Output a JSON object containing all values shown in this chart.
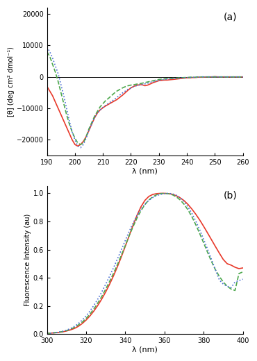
{
  "panel_a": {
    "xlim": [
      190,
      260
    ],
    "ylim": [
      -25000,
      22000
    ],
    "xlabel": "λ (nm)",
    "ylabel": "[θ] (deg cm² dmol⁻¹)",
    "xticks": [
      190,
      200,
      210,
      220,
      230,
      240,
      250,
      260
    ],
    "yticks": [
      -20000,
      -10000,
      0,
      10000,
      20000
    ],
    "label": "(a)",
    "red_solid": {
      "x": [
        190,
        191,
        192,
        193,
        194,
        195,
        196,
        197,
        198,
        199,
        200,
        201,
        202,
        203,
        204,
        205,
        206,
        207,
        208,
        209,
        210,
        211,
        212,
        213,
        214,
        215,
        216,
        217,
        218,
        219,
        220,
        221,
        222,
        223,
        224,
        225,
        226,
        227,
        228,
        229,
        230,
        231,
        232,
        233,
        234,
        235,
        236,
        237,
        238,
        239,
        240,
        241,
        242,
        243,
        244,
        245,
        246,
        247,
        248,
        249,
        250,
        251,
        252,
        253,
        254,
        255,
        256,
        257,
        258,
        259,
        260
      ],
      "y": [
        -3000,
        -4500,
        -6000,
        -8000,
        -10000,
        -12000,
        -14000,
        -16000,
        -18000,
        -20000,
        -21500,
        -22000,
        -21500,
        -20500,
        -19000,
        -17000,
        -15000,
        -13000,
        -11500,
        -10500,
        -9800,
        -9200,
        -8700,
        -8200,
        -7700,
        -7200,
        -6500,
        -5800,
        -5000,
        -4200,
        -3500,
        -3000,
        -2700,
        -2500,
        -2500,
        -2800,
        -2600,
        -2200,
        -1800,
        -1500,
        -1200,
        -1100,
        -1000,
        -1000,
        -900,
        -800,
        -700,
        -600,
        -500,
        -400,
        -300,
        -300,
        -200,
        -200,
        -100,
        -100,
        -100,
        0,
        0,
        0,
        100,
        0,
        0,
        0,
        0,
        0,
        0,
        0,
        0,
        0,
        0
      ]
    },
    "green_dashed": {
      "x": [
        190,
        191,
        192,
        193,
        194,
        195,
        196,
        197,
        198,
        199,
        200,
        201,
        202,
        203,
        204,
        205,
        206,
        207,
        208,
        209,
        210,
        211,
        212,
        213,
        214,
        215,
        216,
        217,
        218,
        219,
        220,
        221,
        222,
        223,
        224,
        225,
        226,
        227,
        228,
        229,
        230,
        231,
        232,
        233,
        234,
        235,
        236,
        237,
        238,
        239,
        240,
        241,
        242,
        243,
        244,
        245,
        246,
        247,
        248,
        249,
        250,
        251,
        252,
        253,
        254,
        255,
        256,
        257,
        258,
        259,
        260
      ],
      "y": [
        8000,
        6500,
        4000,
        1500,
        -1500,
        -5000,
        -8500,
        -12000,
        -15000,
        -17500,
        -19500,
        -21000,
        -21500,
        -21000,
        -19000,
        -16500,
        -14500,
        -12500,
        -11000,
        -9500,
        -8500,
        -7500,
        -6800,
        -6000,
        -5200,
        -4500,
        -4000,
        -3500,
        -3100,
        -2800,
        -2600,
        -2500,
        -2300,
        -2200,
        -2000,
        -1800,
        -1600,
        -1400,
        -1200,
        -1000,
        -800,
        -700,
        -600,
        -500,
        -500,
        -400,
        -400,
        -300,
        -300,
        -200,
        -200,
        -100,
        -100,
        -100,
        0,
        0,
        0,
        0,
        0,
        0,
        0,
        0,
        0,
        0,
        0,
        0,
        0,
        0,
        0,
        0,
        0
      ]
    },
    "blue_dotted": {
      "x": [
        190,
        191,
        192,
        193,
        194,
        195,
        196,
        197,
        198,
        199,
        200,
        201,
        202,
        203,
        204,
        205,
        206,
        207,
        208,
        209,
        210,
        211,
        212,
        213,
        214,
        215,
        216,
        217,
        218,
        219,
        220,
        221,
        222,
        223,
        224,
        225,
        226,
        227,
        228,
        229,
        230,
        231,
        232,
        233,
        234,
        235,
        236,
        237,
        238,
        239,
        240,
        241,
        242,
        243,
        244,
        245,
        246,
        247,
        248,
        249,
        250,
        251,
        252,
        253,
        254,
        255,
        256,
        257,
        258,
        259,
        260
      ],
      "y": [
        9500,
        8000,
        6000,
        3500,
        1000,
        -2500,
        -6000,
        -10000,
        -14000,
        -17500,
        -20000,
        -22000,
        -22500,
        -21500,
        -19500,
        -17000,
        -15000,
        -13000,
        -11500,
        -10500,
        -9700,
        -9000,
        -8400,
        -7800,
        -7200,
        -6500,
        -5800,
        -5100,
        -4500,
        -3900,
        -3500,
        -3100,
        -2800,
        -2600,
        -2400,
        -2200,
        -2000,
        -1700,
        -1500,
        -1300,
        -1100,
        -900,
        -800,
        -700,
        -600,
        -500,
        -500,
        -400,
        -300,
        -300,
        -200,
        -200,
        -100,
        -100,
        -100,
        0,
        0,
        0,
        0,
        0,
        0,
        0,
        0,
        0,
        0,
        0,
        0,
        0,
        0,
        0,
        0
      ]
    }
  },
  "panel_b": {
    "xlim": [
      300,
      400
    ],
    "ylim": [
      0,
      1.05
    ],
    "xlabel": "λ (nm)",
    "ylabel": "Fluorescence Intensity (au)",
    "xticks": [
      300,
      320,
      340,
      360,
      380,
      400
    ],
    "yticks": [
      0.0,
      0.2,
      0.4,
      0.6,
      0.8,
      1.0
    ],
    "label": "(b)",
    "red_solid": {
      "x": [
        300,
        302,
        304,
        306,
        308,
        310,
        312,
        314,
        316,
        318,
        320,
        322,
        324,
        326,
        328,
        330,
        332,
        334,
        336,
        338,
        340,
        342,
        344,
        346,
        348,
        350,
        352,
        354,
        356,
        358,
        360,
        362,
        364,
        366,
        368,
        370,
        372,
        374,
        376,
        378,
        380,
        382,
        384,
        386,
        388,
        390,
        392,
        394,
        396,
        398,
        400
      ],
      "y": [
        0.005,
        0.007,
        0.009,
        0.012,
        0.016,
        0.022,
        0.03,
        0.04,
        0.055,
        0.075,
        0.1,
        0.13,
        0.165,
        0.205,
        0.25,
        0.3,
        0.355,
        0.415,
        0.48,
        0.55,
        0.625,
        0.7,
        0.775,
        0.845,
        0.905,
        0.95,
        0.978,
        0.992,
        0.998,
        1.0,
        1.0,
        0.998,
        0.993,
        0.983,
        0.968,
        0.948,
        0.921,
        0.888,
        0.851,
        0.81,
        0.765,
        0.718,
        0.67,
        0.622,
        0.575,
        0.53,
        0.5,
        0.49,
        0.475,
        0.465,
        0.47
      ]
    },
    "green_dashed": {
      "x": [
        300,
        302,
        304,
        306,
        308,
        310,
        312,
        314,
        316,
        318,
        320,
        322,
        324,
        326,
        328,
        330,
        332,
        334,
        336,
        338,
        340,
        342,
        344,
        346,
        348,
        350,
        352,
        354,
        356,
        358,
        360,
        362,
        364,
        366,
        368,
        370,
        372,
        374,
        376,
        378,
        380,
        382,
        384,
        386,
        388,
        390,
        392,
        394,
        396,
        398,
        400
      ],
      "y": [
        0.005,
        0.007,
        0.01,
        0.013,
        0.018,
        0.025,
        0.035,
        0.048,
        0.065,
        0.085,
        0.112,
        0.143,
        0.18,
        0.222,
        0.268,
        0.32,
        0.375,
        0.433,
        0.495,
        0.562,
        0.63,
        0.7,
        0.765,
        0.825,
        0.877,
        0.92,
        0.953,
        0.975,
        0.99,
        0.998,
        1.0,
        0.997,
        0.99,
        0.975,
        0.953,
        0.922,
        0.882,
        0.833,
        0.776,
        0.713,
        0.647,
        0.58,
        0.515,
        0.457,
        0.41,
        0.37,
        0.34,
        0.32,
        0.31,
        0.43,
        0.442
      ]
    },
    "blue_dotted": {
      "x": [
        300,
        302,
        304,
        306,
        308,
        310,
        312,
        314,
        316,
        318,
        320,
        322,
        324,
        326,
        328,
        330,
        332,
        334,
        336,
        338,
        340,
        342,
        344,
        346,
        348,
        350,
        352,
        354,
        356,
        358,
        360,
        362,
        364,
        366,
        368,
        370,
        372,
        374,
        376,
        378,
        380,
        382,
        384,
        386,
        388,
        390,
        392,
        394,
        396,
        398,
        400
      ],
      "y": [
        0.005,
        0.007,
        0.01,
        0.014,
        0.02,
        0.028,
        0.04,
        0.055,
        0.075,
        0.1,
        0.13,
        0.165,
        0.205,
        0.25,
        0.3,
        0.355,
        0.412,
        0.472,
        0.535,
        0.6,
        0.666,
        0.73,
        0.79,
        0.843,
        0.888,
        0.923,
        0.95,
        0.97,
        0.984,
        0.993,
        0.998,
        1.0,
        0.997,
        0.987,
        0.969,
        0.941,
        0.903,
        0.857,
        0.802,
        0.74,
        0.673,
        0.602,
        0.53,
        0.457,
        0.385,
        0.355,
        0.34,
        0.33,
        0.37,
        0.38,
        0.39
      ]
    }
  },
  "colors": {
    "red": "#e8392a",
    "green": "#4da84d",
    "blue": "#4a6fd4"
  },
  "background": "#ffffff"
}
